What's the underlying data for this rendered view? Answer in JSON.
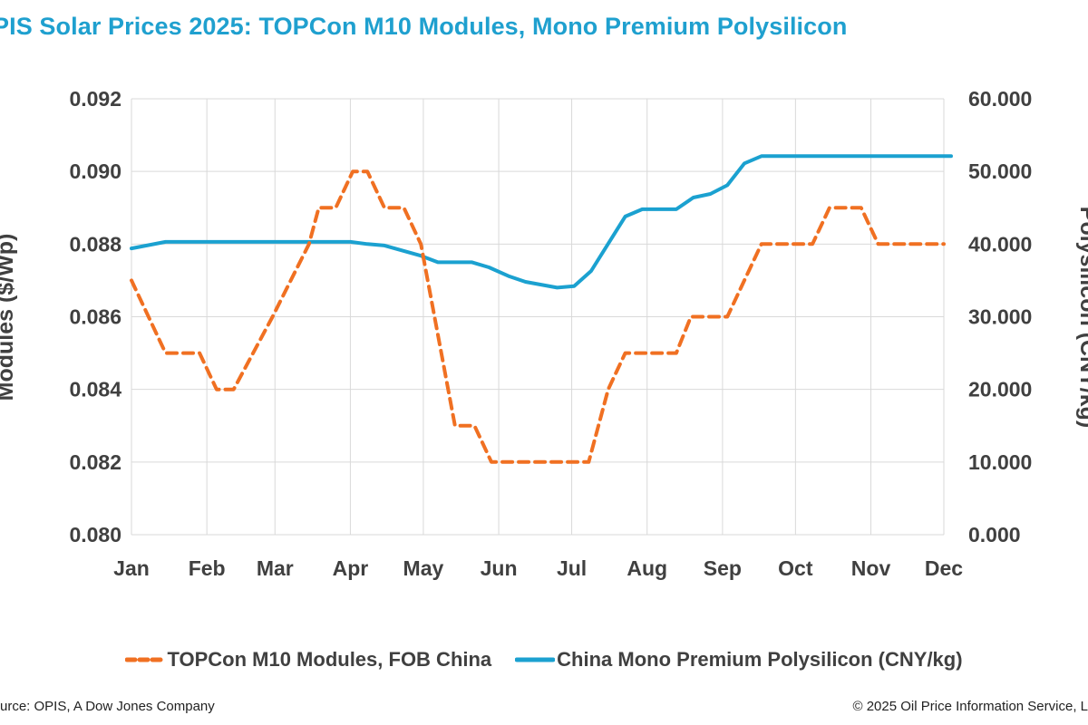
{
  "title": "PIS Solar Prices 2025: TOPCon M10 Modules, Mono Premium Polysilicon",
  "footer": {
    "source": "urce: OPIS, A Dow Jones Company",
    "copyright": "© 2025 Oil Price Information Service, L"
  },
  "colors": {
    "modules": "#f07022",
    "polysilicon": "#1ba1d0",
    "title": "#1fa0cf",
    "grid": "#d9d9d9",
    "text": "#404040"
  },
  "chart_data": {
    "type": "line",
    "title": "PIS Solar Prices 2025: TOPCon M10 Modules, Mono Premium Polysilicon",
    "x_unit": "days since Jan 1, 2025",
    "xlim": [
      0,
      334
    ],
    "x_ticks": [
      {
        "label": "Jan",
        "day": 0
      },
      {
        "label": "Feb",
        "day": 31
      },
      {
        "label": "Mar",
        "day": 59
      },
      {
        "label": "Apr",
        "day": 90
      },
      {
        "label": "May",
        "day": 120
      },
      {
        "label": "Jun",
        "day": 151
      },
      {
        "label": "Jul",
        "day": 181
      },
      {
        "label": "Aug",
        "day": 212
      },
      {
        "label": "Sep",
        "day": 243
      },
      {
        "label": "Oct",
        "day": 273
      },
      {
        "label": "Nov",
        "day": 304
      },
      {
        "label": "Dec",
        "day": 334
      }
    ],
    "y_left": {
      "label": "Modules ($/Wp)",
      "lim": [
        0.08,
        0.092
      ],
      "ticks": [
        "0.080",
        "0.082",
        "0.084",
        "0.086",
        "0.088",
        "0.090",
        "0.092"
      ]
    },
    "y_right": {
      "label": "Polysilicon (CNY/kg)",
      "lim": [
        0,
        60
      ],
      "ticks": [
        "0.000",
        "10.000",
        "20.000",
        "30.000",
        "40.000",
        "50.000",
        "60.000"
      ]
    },
    "grid": true,
    "legend_position": "bottom",
    "series": [
      {
        "name": "TOPCon M10 Modules, FOB China",
        "axis": "left",
        "style": "dashed",
        "color": "#f07022",
        "points": [
          [
            0,
            0.087
          ],
          [
            14,
            0.085
          ],
          [
            28,
            0.085
          ],
          [
            35,
            0.084
          ],
          [
            42,
            0.084
          ],
          [
            58,
            0.086
          ],
          [
            73,
            0.088
          ],
          [
            77,
            0.089
          ],
          [
            84,
            0.089
          ],
          [
            91,
            0.09
          ],
          [
            97,
            0.09
          ],
          [
            104,
            0.089
          ],
          [
            112,
            0.089
          ],
          [
            119,
            0.088
          ],
          [
            133,
            0.083
          ],
          [
            141,
            0.083
          ],
          [
            148,
            0.082
          ],
          [
            155,
            0.082
          ],
          [
            162,
            0.082
          ],
          [
            175,
            0.082
          ],
          [
            188,
            0.082
          ],
          [
            196,
            0.084
          ],
          [
            203,
            0.085
          ],
          [
            210,
            0.085
          ],
          [
            224,
            0.085
          ],
          [
            230,
            0.086
          ],
          [
            245,
            0.086
          ],
          [
            259,
            0.088
          ],
          [
            266,
            0.088
          ],
          [
            280,
            0.088
          ],
          [
            287,
            0.089
          ],
          [
            300,
            0.089
          ],
          [
            307,
            0.088
          ],
          [
            320,
            0.088
          ],
          [
            334,
            0.088
          ]
        ]
      },
      {
        "name": "China Mono Premium Polysilicon (CNY/kg)",
        "axis": "right",
        "style": "solid",
        "color": "#1ba1d0",
        "points": [
          [
            0,
            39.4
          ],
          [
            14,
            40.3
          ],
          [
            28,
            40.3
          ],
          [
            42,
            40.3
          ],
          [
            56,
            40.3
          ],
          [
            70,
            40.3
          ],
          [
            90,
            40.3
          ],
          [
            97,
            40.0
          ],
          [
            104,
            39.8
          ],
          [
            119,
            38.4
          ],
          [
            126,
            37.5
          ],
          [
            140,
            37.5
          ],
          [
            147,
            36.8
          ],
          [
            155,
            35.6
          ],
          [
            162,
            34.8
          ],
          [
            175,
            34.0
          ],
          [
            182,
            34.2
          ],
          [
            189,
            36.3
          ],
          [
            203,
            43.8
          ],
          [
            210,
            44.8
          ],
          [
            224,
            44.8
          ],
          [
            231,
            46.4
          ],
          [
            238,
            46.9
          ],
          [
            245,
            48.1
          ],
          [
            252,
            51.1
          ],
          [
            259,
            52.1
          ],
          [
            273,
            52.1
          ],
          [
            300,
            52.1
          ],
          [
            320,
            52.1
          ],
          [
            337,
            52.1
          ]
        ]
      }
    ]
  }
}
